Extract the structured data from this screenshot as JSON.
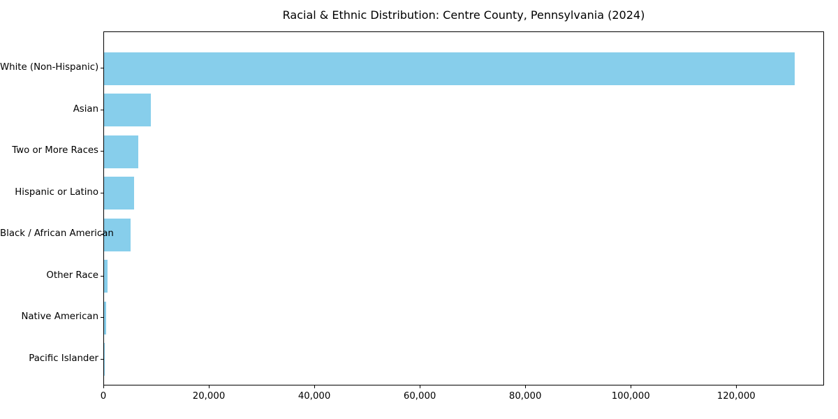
{
  "chart_data": {
    "type": "bar",
    "orientation": "horizontal",
    "title": "Racial & Ethnic Distribution: Centre County, Pennsylvania (2024)",
    "categories": [
      "White (Non-Hispanic)",
      "Asian",
      "Two or More Races",
      "Hispanic or Latino",
      "Black / African American",
      "Other Race",
      "Native American",
      "Pacific Islander"
    ],
    "values": [
      131000,
      8900,
      6500,
      5700,
      5000,
      700,
      350,
      50
    ],
    "xlabel": "",
    "ylabel": "",
    "xlim": [
      0,
      136650
    ],
    "xticks": [
      {
        "value": 0,
        "label": "0"
      },
      {
        "value": 20000,
        "label": "20,000"
      },
      {
        "value": 40000,
        "label": "40,000"
      },
      {
        "value": 60000,
        "label": "60,000"
      },
      {
        "value": 80000,
        "label": "80,000"
      },
      {
        "value": 100000,
        "label": "100,000"
      },
      {
        "value": 120000,
        "label": "120,000"
      }
    ],
    "grid": false,
    "legend": null,
    "bar_color": "#87CEEB",
    "background_color": "#FFFFFF",
    "text_color": "#000000"
  }
}
